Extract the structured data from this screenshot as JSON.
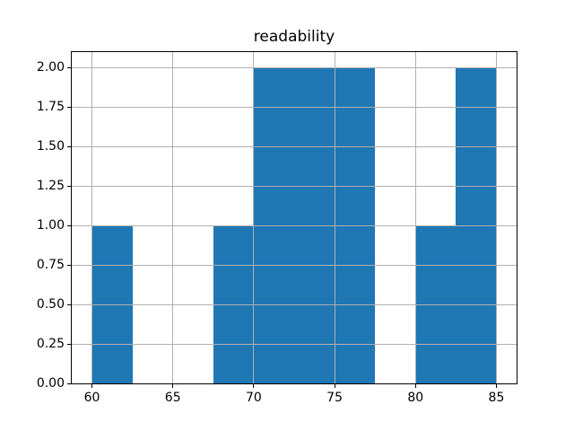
{
  "figure": {
    "background": "#ffffff"
  },
  "chart_data": {
    "type": "bar",
    "subtype": "histogram",
    "title": "readability",
    "xlabel": "",
    "ylabel": "",
    "bin_edges": [
      60,
      62.5,
      65,
      67.5,
      70,
      72.5,
      75,
      77.5,
      80,
      82.5,
      85
    ],
    "counts": [
      1,
      0,
      0,
      1,
      2,
      2,
      2,
      0,
      1,
      2
    ],
    "xlim": [
      58.75,
      86.25
    ],
    "ylim": [
      0,
      2.1
    ],
    "x_ticks": [
      60,
      65,
      70,
      75,
      80,
      85
    ],
    "x_tick_labels": [
      "60",
      "65",
      "70",
      "75",
      "80",
      "85"
    ],
    "y_ticks": [
      0,
      0.25,
      0.5,
      0.75,
      1.0,
      1.25,
      1.5,
      1.75,
      2.0
    ],
    "y_tick_labels": [
      "0.00",
      "0.25",
      "0.50",
      "0.75",
      "1.00",
      "1.25",
      "1.50",
      "1.75",
      "2.00"
    ],
    "grid": true,
    "legend": false,
    "bar_color": "#1f77b4",
    "grid_color": "#b0b0b0",
    "spine_color": "#000000",
    "text_color": "#000000"
  }
}
